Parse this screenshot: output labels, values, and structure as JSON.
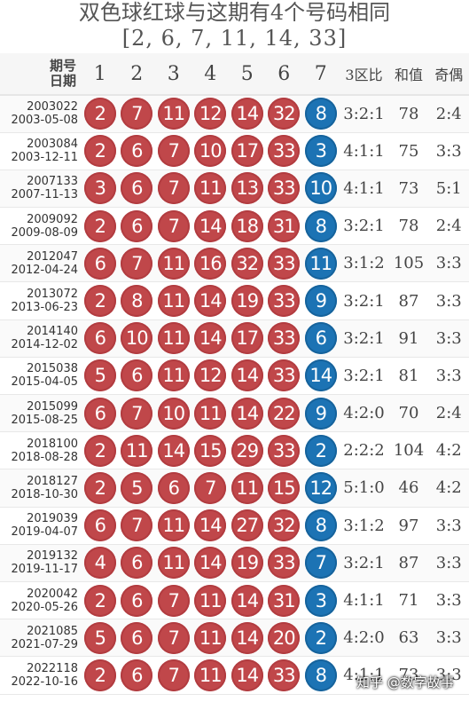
{
  "title": "双色球红球与这期有4个号码相同",
  "subtitle": "[2, 6, 7, 11, 14, 33]",
  "header": {
    "issue_label": "期号",
    "date_label": "日期",
    "cols": [
      "1",
      "2",
      "3",
      "4",
      "5",
      "6",
      "7"
    ],
    "zone_ratio": "3区比",
    "sum": "和值",
    "odd_even": "奇偶"
  },
  "colors": {
    "red": "#c0474a",
    "blue": "#1c73b4"
  },
  "rows": [
    {
      "issue": "2003022",
      "date": "2003-05-08",
      "balls": [
        "2",
        "7",
        "11",
        "12",
        "14",
        "32"
      ],
      "blue": "8",
      "zone": "3:2:1",
      "sum": "78",
      "oe": "2:4"
    },
    {
      "issue": "2003084",
      "date": "2003-12-11",
      "balls": [
        "2",
        "6",
        "7",
        "10",
        "17",
        "33"
      ],
      "blue": "3",
      "zone": "4:1:1",
      "sum": "75",
      "oe": "3:3"
    },
    {
      "issue": "2007133",
      "date": "2007-11-13",
      "balls": [
        "3",
        "6",
        "7",
        "11",
        "13",
        "33"
      ],
      "blue": "10",
      "zone": "4:1:1",
      "sum": "73",
      "oe": "5:1"
    },
    {
      "issue": "2009092",
      "date": "2009-08-09",
      "balls": [
        "2",
        "6",
        "7",
        "14",
        "18",
        "31"
      ],
      "blue": "8",
      "zone": "3:2:1",
      "sum": "78",
      "oe": "2:4"
    },
    {
      "issue": "2012047",
      "date": "2012-04-24",
      "balls": [
        "6",
        "7",
        "11",
        "16",
        "32",
        "33"
      ],
      "blue": "11",
      "zone": "3:1:2",
      "sum": "105",
      "oe": "3:3"
    },
    {
      "issue": "2013072",
      "date": "2013-06-23",
      "balls": [
        "2",
        "8",
        "11",
        "14",
        "19",
        "33"
      ],
      "blue": "9",
      "zone": "3:2:1",
      "sum": "87",
      "oe": "3:3"
    },
    {
      "issue": "2014140",
      "date": "2014-12-02",
      "balls": [
        "6",
        "10",
        "11",
        "14",
        "17",
        "33"
      ],
      "blue": "6",
      "zone": "3:2:1",
      "sum": "91",
      "oe": "3:3"
    },
    {
      "issue": "2015038",
      "date": "2015-04-05",
      "balls": [
        "5",
        "6",
        "11",
        "12",
        "14",
        "33"
      ],
      "blue": "14",
      "zone": "3:2:1",
      "sum": "81",
      "oe": "3:3"
    },
    {
      "issue": "2015099",
      "date": "2015-08-25",
      "balls": [
        "6",
        "7",
        "10",
        "11",
        "14",
        "22"
      ],
      "blue": "9",
      "zone": "4:2:0",
      "sum": "70",
      "oe": "2:4"
    },
    {
      "issue": "2018100",
      "date": "2018-08-28",
      "balls": [
        "2",
        "11",
        "14",
        "15",
        "29",
        "33"
      ],
      "blue": "2",
      "zone": "2:2:2",
      "sum": "104",
      "oe": "4:2"
    },
    {
      "issue": "2018127",
      "date": "2018-10-30",
      "balls": [
        "2",
        "5",
        "6",
        "7",
        "11",
        "15"
      ],
      "blue": "12",
      "zone": "5:1:0",
      "sum": "46",
      "oe": "4:2"
    },
    {
      "issue": "2019039",
      "date": "2019-04-07",
      "balls": [
        "6",
        "7",
        "11",
        "14",
        "27",
        "32"
      ],
      "blue": "8",
      "zone": "3:1:2",
      "sum": "97",
      "oe": "3:3"
    },
    {
      "issue": "2019132",
      "date": "2019-11-17",
      "balls": [
        "4",
        "6",
        "11",
        "14",
        "19",
        "33"
      ],
      "blue": "7",
      "zone": "3:2:1",
      "sum": "87",
      "oe": "3:3"
    },
    {
      "issue": "2020042",
      "date": "2020-05-26",
      "balls": [
        "2",
        "6",
        "7",
        "11",
        "14",
        "31"
      ],
      "blue": "3",
      "zone": "4:1:1",
      "sum": "71",
      "oe": "3:3"
    },
    {
      "issue": "2021085",
      "date": "2021-07-29",
      "balls": [
        "5",
        "6",
        "7",
        "11",
        "14",
        "20"
      ],
      "blue": "2",
      "zone": "4:2:0",
      "sum": "63",
      "oe": "3:3"
    },
    {
      "issue": "2022118",
      "date": "2022-10-16",
      "balls": [
        "2",
        "6",
        "7",
        "11",
        "14",
        "33"
      ],
      "blue": "8",
      "zone": "4:1:1",
      "sum": "73",
      "oe": "3:3"
    }
  ],
  "watermark": "知乎 @数字故事"
}
